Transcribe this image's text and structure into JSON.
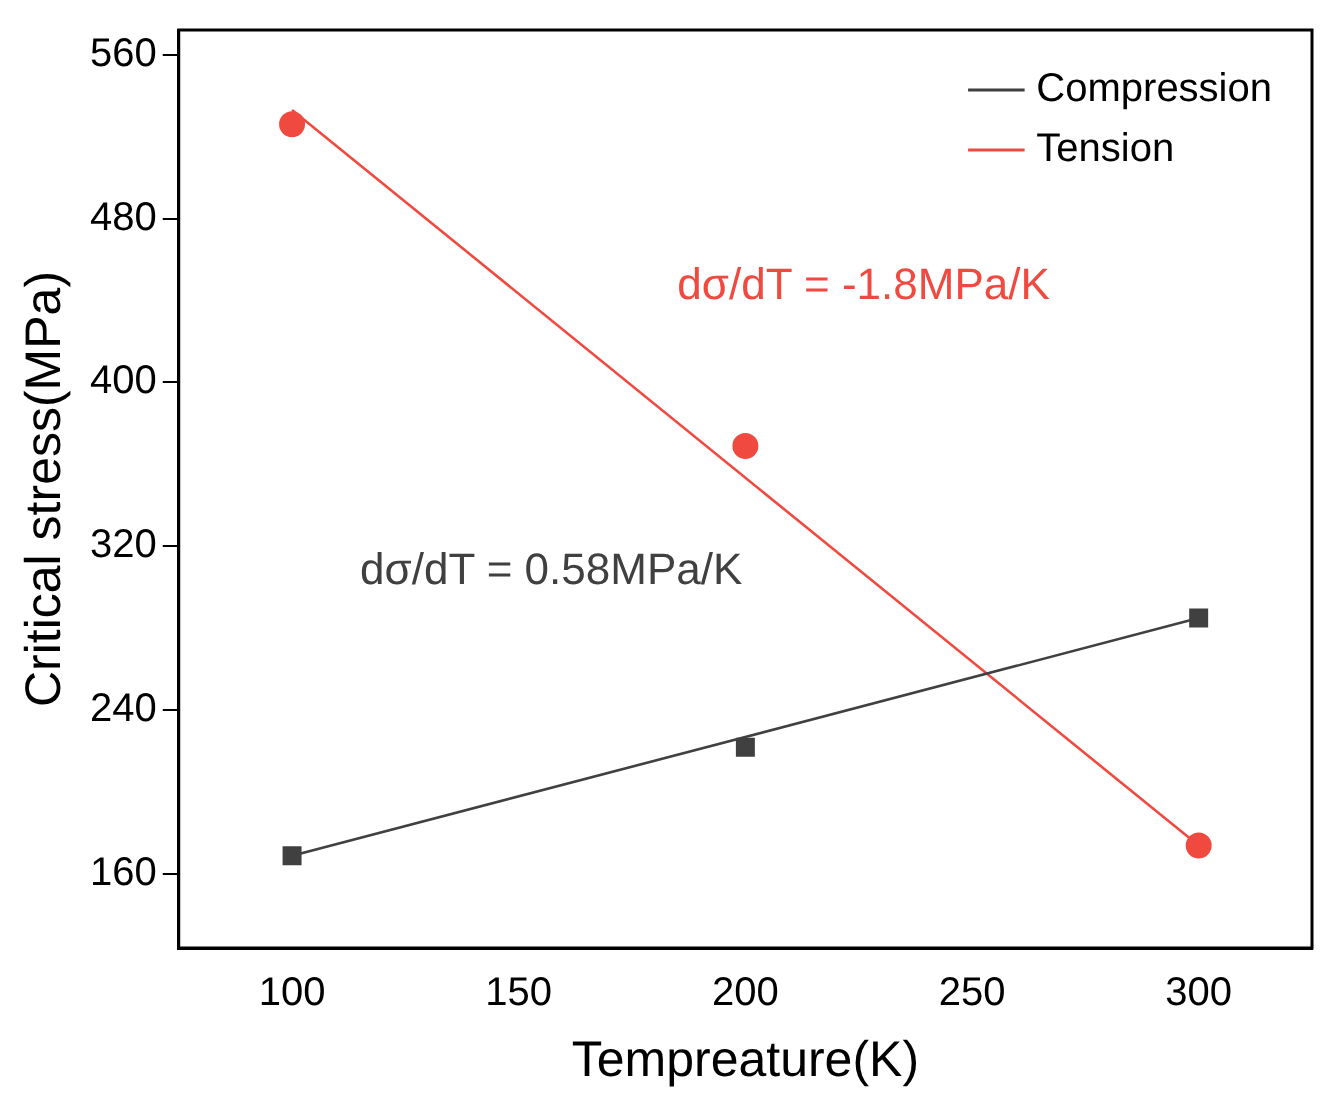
{
  "chart_data": {
    "type": "scatter",
    "xlabel": "Tempreature(K)",
    "ylabel": "Critical stress(MPa)",
    "xlim": [
      75,
      325
    ],
    "xticks": [
      100,
      150,
      200,
      250,
      300
    ],
    "ylim": [
      124,
      572
    ],
    "yticks": [
      160,
      240,
      320,
      400,
      480,
      560
    ],
    "grid": false,
    "legend": "top right",
    "series": [
      {
        "type": "line",
        "name": "Compression",
        "color": "#404040",
        "x": [
          100,
          300
        ],
        "values": [
          169,
          285
        ],
        "marker": "none"
      },
      {
        "type": "line",
        "name": "Tension",
        "color": "#f04a40",
        "x": [
          100,
          300
        ],
        "values": [
          533,
          174
        ],
        "marker": "none"
      },
      {
        "type": "scatter",
        "color": "#404040",
        "x": [
          100,
          200,
          300
        ],
        "values": [
          169,
          222,
          285
        ],
        "marker": "square"
      },
      {
        "type": "scatter",
        "color": "#f04a40",
        "x": [
          100,
          200,
          300
        ],
        "values": [
          526,
          369,
          174
        ],
        "marker": "circle"
      }
    ],
    "annotations": [
      "dσ/dT = 0.58MPa/K",
      "dσ/dT = -1.8MPa/K"
    ]
  }
}
